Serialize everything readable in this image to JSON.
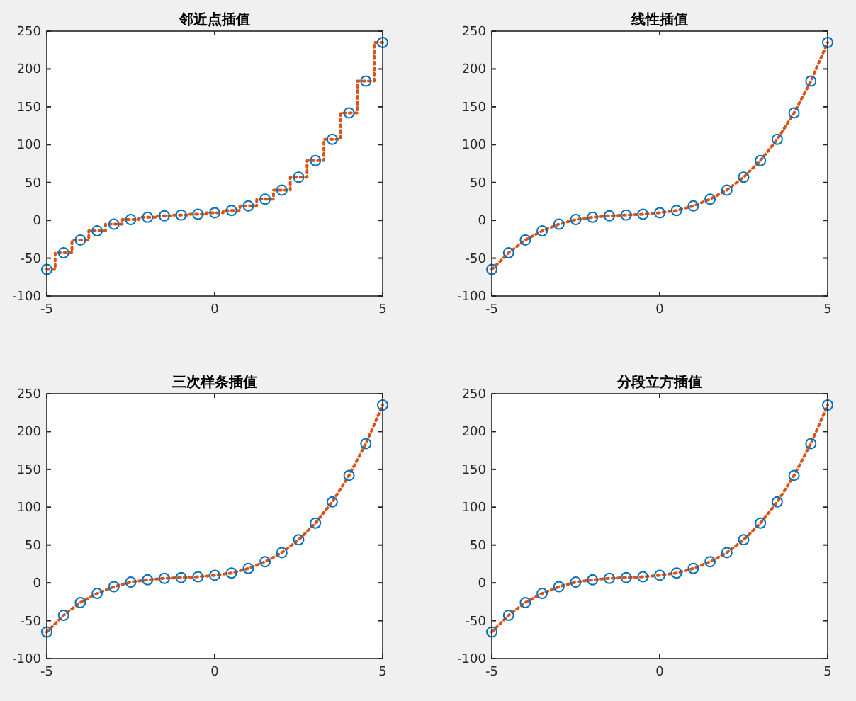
{
  "chart_data": [
    {
      "type": "step",
      "title": "邻近点插值",
      "xlim": [
        -5,
        5
      ],
      "xticks": [
        -5,
        0,
        5
      ],
      "ylim": [
        -100,
        250
      ],
      "yticks": [
        -100,
        -50,
        0,
        50,
        100,
        150,
        200,
        250
      ],
      "x": [
        -5,
        -4.5,
        -4,
        -3.5,
        -3,
        -2.5,
        -2,
        -1.5,
        -1,
        -0.5,
        0,
        0.5,
        1,
        1.5,
        2,
        2.5,
        3,
        3.5,
        4,
        4.5,
        5
      ],
      "series": [
        {
          "type": "scatter",
          "marker": "circle",
          "color": "#0072bd",
          "values": [
            -65,
            -43,
            -26,
            -14,
            -5,
            1,
            4,
            6,
            7,
            8,
            10,
            13,
            19,
            28,
            40,
            57,
            79,
            107,
            142,
            184,
            235
          ]
        },
        {
          "line_style": "dotted",
          "color": "#d95319",
          "values": [
            -65,
            -43,
            -26,
            -14,
            -5,
            1,
            4,
            6,
            7,
            8,
            10,
            13,
            19,
            28,
            40,
            57,
            79,
            107,
            142,
            184,
            235
          ]
        }
      ]
    },
    {
      "type": "line",
      "title": "线性插值",
      "xlim": [
        -5,
        5
      ],
      "xticks": [
        -5,
        0,
        5
      ],
      "ylim": [
        -100,
        250
      ],
      "yticks": [
        -100,
        -50,
        0,
        50,
        100,
        150,
        200,
        250
      ],
      "x": [
        -5,
        -4.5,
        -4,
        -3.5,
        -3,
        -2.5,
        -2,
        -1.5,
        -1,
        -0.5,
        0,
        0.5,
        1,
        1.5,
        2,
        2.5,
        3,
        3.5,
        4,
        4.5,
        5
      ],
      "series": [
        {
          "type": "scatter",
          "marker": "circle",
          "color": "#0072bd",
          "values": [
            -65,
            -43,
            -26,
            -14,
            -5,
            1,
            4,
            6,
            7,
            8,
            10,
            13,
            19,
            28,
            40,
            57,
            79,
            107,
            142,
            184,
            235
          ]
        },
        {
          "line_style": "dotted",
          "color": "#d95319",
          "values": [
            -65,
            -43,
            -26,
            -14,
            -5,
            1,
            4,
            6,
            7,
            8,
            10,
            13,
            19,
            28,
            40,
            57,
            79,
            107,
            142,
            184,
            235
          ]
        }
      ]
    },
    {
      "type": "line",
      "title": "三次样条插值",
      "xlim": [
        -5,
        5
      ],
      "xticks": [
        -5,
        0,
        5
      ],
      "ylim": [
        -100,
        250
      ],
      "yticks": [
        -100,
        -50,
        0,
        50,
        100,
        150,
        200,
        250
      ],
      "x": [
        -5,
        -4.5,
        -4,
        -3.5,
        -3,
        -2.5,
        -2,
        -1.5,
        -1,
        -0.5,
        0,
        0.5,
        1,
        1.5,
        2,
        2.5,
        3,
        3.5,
        4,
        4.5,
        5
      ],
      "series": [
        {
          "type": "scatter",
          "marker": "circle",
          "color": "#0072bd",
          "values": [
            -65,
            -43,
            -26,
            -14,
            -5,
            1,
            4,
            6,
            7,
            8,
            10,
            13,
            19,
            28,
            40,
            57,
            79,
            107,
            142,
            184,
            235
          ]
        },
        {
          "line_style": "dotted",
          "color": "#d95319",
          "values": [
            -65,
            -43,
            -26,
            -14,
            -5,
            1,
            4,
            6,
            7,
            8,
            10,
            13,
            19,
            28,
            40,
            57,
            79,
            107,
            142,
            184,
            235
          ]
        }
      ]
    },
    {
      "type": "line",
      "title": "分段立方插值",
      "xlim": [
        -5,
        5
      ],
      "xticks": [
        -5,
        0,
        5
      ],
      "ylim": [
        -100,
        250
      ],
      "yticks": [
        -100,
        -50,
        0,
        50,
        100,
        150,
        200,
        250
      ],
      "x": [
        -5,
        -4.5,
        -4,
        -3.5,
        -3,
        -2.5,
        -2,
        -1.5,
        -1,
        -0.5,
        0,
        0.5,
        1,
        1.5,
        2,
        2.5,
        3,
        3.5,
        4,
        4.5,
        5
      ],
      "series": [
        {
          "type": "scatter",
          "marker": "circle",
          "color": "#0072bd",
          "values": [
            -65,
            -43,
            -26,
            -14,
            -5,
            1,
            4,
            6,
            7,
            8,
            10,
            13,
            19,
            28,
            40,
            57,
            79,
            107,
            142,
            184,
            235
          ]
        },
        {
          "line_style": "dotted",
          "color": "#d95319",
          "values": [
            -65,
            -43,
            -26,
            -14,
            -5,
            1,
            4,
            6,
            7,
            8,
            10,
            13,
            19,
            28,
            40,
            57,
            79,
            107,
            142,
            184,
            235
          ]
        }
      ]
    }
  ]
}
